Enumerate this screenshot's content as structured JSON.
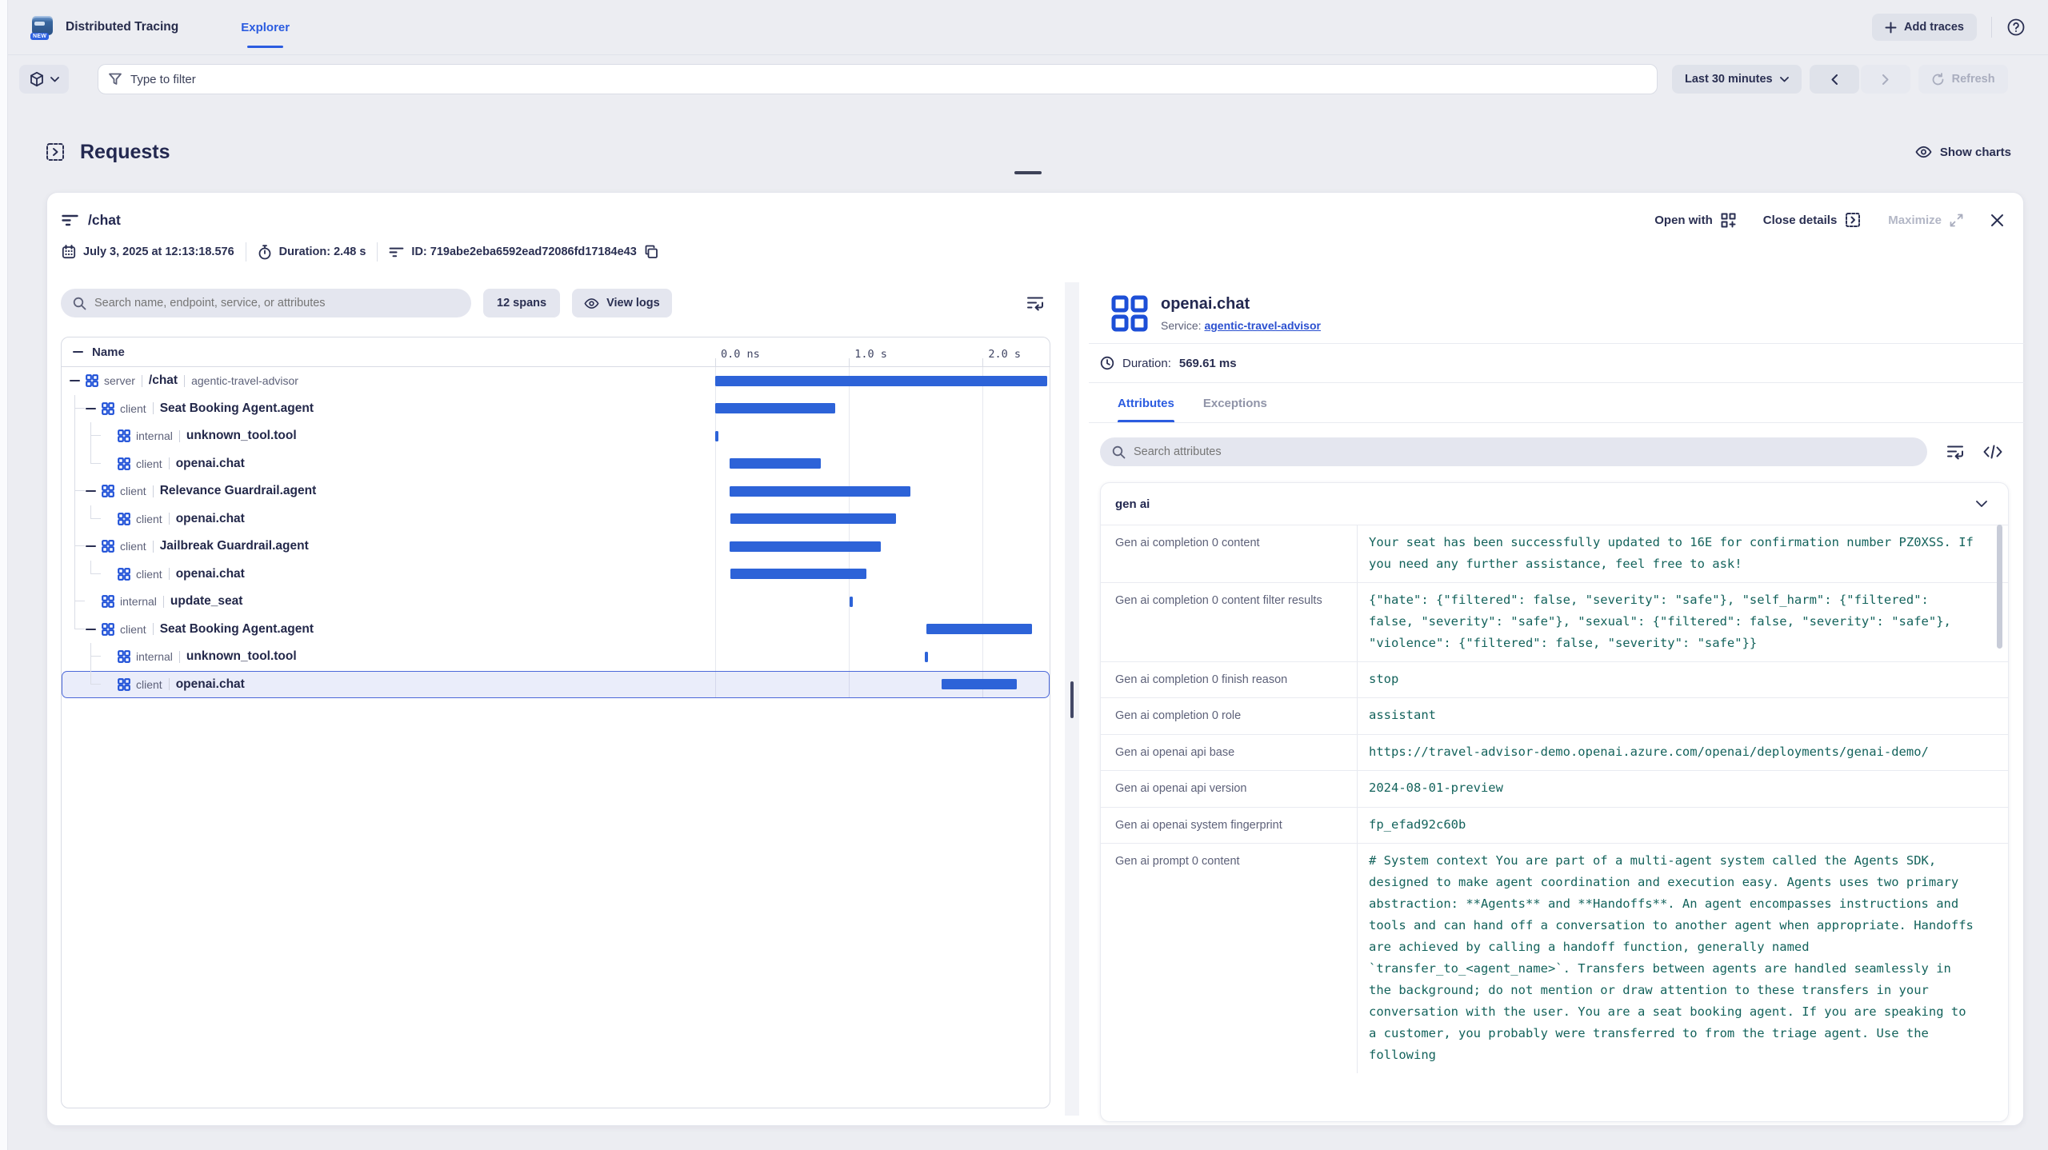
{
  "colors": {
    "accent": "#2b5ce0",
    "bar": "#2d63d8",
    "icon_blue": "#1d4fd7",
    "link": "#2b50d0",
    "value_text": "#14635c",
    "selected_border": "#4c68d9"
  },
  "topbar": {
    "app_title": "Distributed Tracing",
    "badge": "NEW",
    "tab": "Explorer",
    "add_traces": "Add traces"
  },
  "filterbar": {
    "filter_placeholder": "Type to filter",
    "time_range": "Last 30 minutes",
    "refresh": "Refresh"
  },
  "page": {
    "title": "Requests",
    "show_charts": "Show charts"
  },
  "trace": {
    "name": "/chat",
    "timestamp": "July 3, 2025 at 12:13:18.576",
    "duration": "Duration: 2.48 s",
    "id": "ID: 719abe2eba6592ead72086fd17184e43",
    "open_with": "Open with",
    "close_details": "Close details",
    "maximize": "Maximize"
  },
  "spans": {
    "search_placeholder": "Search name, endpoint, service, or attributes",
    "count": "12 spans",
    "view_logs": "View logs",
    "name_header": "Name",
    "axis": {
      "max_s": 2.5,
      "ticks": [
        {
          "label": "0.0 ns",
          "s": 0
        },
        {
          "label": "1.0 s",
          "s": 1
        },
        {
          "label": "2.0 s",
          "s": 2
        }
      ]
    },
    "rows": [
      {
        "kind": "server",
        "name": "/chat",
        "service": "agentic-travel-advisor",
        "level": 0,
        "collapsible": true,
        "selected": false,
        "start_s": 0,
        "end_s": 2.48
      },
      {
        "kind": "client",
        "name": "Seat Booking Agent.agent",
        "level": 1,
        "collapsible": true,
        "selected": false,
        "start_s": 0,
        "end_s": 0.9
      },
      {
        "kind": "internal",
        "name": "unknown_tool.tool",
        "level": 2,
        "collapsible": false,
        "selected": false,
        "start_s": 0,
        "end_s": 0.025
      },
      {
        "kind": "client",
        "name": "openai.chat",
        "level": 2,
        "collapsible": false,
        "selected": false,
        "start_s": 0.105,
        "end_s": 0.79
      },
      {
        "kind": "client",
        "name": "Relevance Guardrail.agent",
        "level": 1,
        "collapsible": true,
        "selected": false,
        "start_s": 0.11,
        "end_s": 1.46
      },
      {
        "kind": "client",
        "name": "openai.chat",
        "level": 2,
        "collapsible": false,
        "selected": false,
        "start_s": 0.115,
        "end_s": 1.35
      },
      {
        "kind": "client",
        "name": "Jailbreak Guardrail.agent",
        "level": 1,
        "collapsible": true,
        "selected": false,
        "start_s": 0.11,
        "end_s": 1.24
      },
      {
        "kind": "client",
        "name": "openai.chat",
        "level": 2,
        "collapsible": false,
        "selected": false,
        "start_s": 0.115,
        "end_s": 1.13
      },
      {
        "kind": "internal",
        "name": "update_seat",
        "level": 1,
        "collapsible": false,
        "selected": false,
        "start_s": 1.005,
        "end_s": 1.03
      },
      {
        "kind": "client",
        "name": "Seat Booking Agent.agent",
        "level": 1,
        "collapsible": true,
        "selected": false,
        "start_s": 1.58,
        "end_s": 2.37
      },
      {
        "kind": "internal",
        "name": "unknown_tool.tool",
        "level": 2,
        "collapsible": false,
        "selected": false,
        "start_s": 1.565,
        "end_s": 1.59
      },
      {
        "kind": "client",
        "name": "openai.chat",
        "level": 2,
        "collapsible": false,
        "selected": true,
        "start_s": 1.69,
        "end_s": 2.255
      }
    ]
  },
  "details": {
    "title": "openai.chat",
    "service_label": "Service:",
    "service": "agentic-travel-advisor",
    "duration_label": "Duration:",
    "duration_value": "569.61 ms",
    "tabs": [
      "Attributes",
      "Exceptions"
    ],
    "active_tab": "Attributes",
    "search_placeholder": "Search attributes",
    "section_title": "gen ai",
    "attributes": [
      {
        "key": "Gen ai completion 0 content",
        "value": "Your seat has been successfully updated to 16E for confirmation number PZ0XSS. If you need any further assistance, feel free to ask!"
      },
      {
        "key": "Gen ai completion 0 content filter results",
        "value": "{\"hate\": {\"filtered\": false, \"severity\": \"safe\"}, \"self_harm\": {\"filtered\": false, \"severity\": \"safe\"}, \"sexual\": {\"filtered\": false, \"severity\": \"safe\"}, \"violence\": {\"filtered\": false, \"severity\": \"safe\"}}"
      },
      {
        "key": "Gen ai completion 0 finish reason",
        "value": "stop"
      },
      {
        "key": "Gen ai completion 0 role",
        "value": "assistant"
      },
      {
        "key": "Gen ai openai api base",
        "value": "https://travel-advisor-demo.openai.azure.com/openai/deployments/genai-demo/"
      },
      {
        "key": "Gen ai openai api version",
        "value": "2024-08-01-preview"
      },
      {
        "key": "Gen ai openai system fingerprint",
        "value": "fp_efad92c60b"
      },
      {
        "key": "Gen ai prompt 0 content",
        "value": "# System context You are part of a multi-agent system called the Agents SDK, designed to make agent coordination and execution easy. Agents uses two primary abstraction: **Agents** and **Handoffs**. An agent encompasses instructions and tools and can hand off a conversation to another agent when appropriate. Handoffs are achieved by calling a handoff function, generally named `transfer_to_<agent_name>`. Transfers between agents are handled seamlessly in the background; do not mention or draw attention to these transfers in your conversation with the user. You are a seat booking agent. If you are speaking to a customer, you probably were transferred to from the triage agent. Use the following"
      }
    ]
  }
}
